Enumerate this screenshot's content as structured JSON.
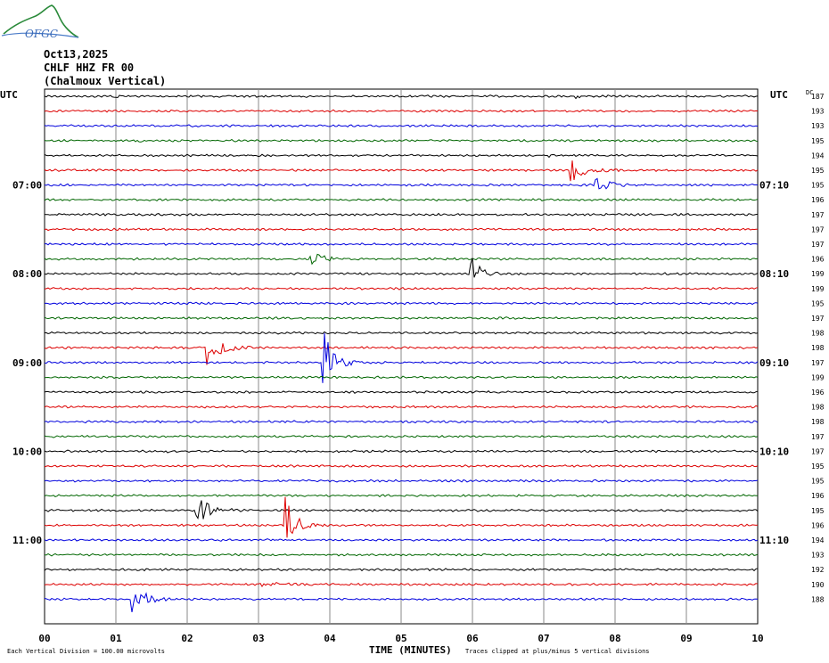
{
  "header": {
    "logo_text": "OFGC",
    "date": "Oct13,2025",
    "station": "CHLF HHZ FR 00",
    "location": "(Chalmoux Vertical)"
  },
  "chart_data": {
    "type": "line",
    "title": "",
    "xlabel": "TIME (MINUTES)",
    "xlim": [
      0,
      10
    ],
    "x_ticks": [
      "00",
      "01",
      "02",
      "03",
      "04",
      "05",
      "06",
      "07",
      "08",
      "09",
      "10"
    ],
    "left_axis_title": "UTC",
    "right_axis_title": "UTC",
    "dc_label": "DC",
    "left_time_labels": [
      {
        "row": 6,
        "label": "07:00"
      },
      {
        "row": 12,
        "label": "08:00"
      },
      {
        "row": 18,
        "label": "09:00"
      },
      {
        "row": 24,
        "label": "10:00"
      },
      {
        "row": 30,
        "label": "11:00"
      }
    ],
    "right_time_labels": [
      {
        "row": 6,
        "label": "07:10"
      },
      {
        "row": 12,
        "label": "08:10"
      },
      {
        "row": 18,
        "label": "09:10"
      },
      {
        "row": 24,
        "label": "10:10"
      },
      {
        "row": 30,
        "label": "11:10"
      }
    ],
    "dc_offsets": [
      187,
      193,
      193,
      195,
      194,
      195,
      195,
      196,
      197,
      197,
      197,
      196,
      199,
      199,
      195,
      197,
      198,
      198,
      197,
      199,
      196,
      198,
      198,
      197,
      197,
      195,
      195,
      196,
      195,
      196,
      194,
      193,
      192,
      190,
      188
    ],
    "trace_colors": [
      "#000000",
      "#dd0000",
      "#0000dd",
      "#006600"
    ],
    "grid": true,
    "events": [
      {
        "row": 0,
        "minute": 0.95,
        "amplitude": 0.5,
        "duration": 0.25
      },
      {
        "row": 0,
        "minute": 7.4,
        "amplitude": 0.5,
        "duration": 0.25
      },
      {
        "row": 3,
        "minute": 1.3,
        "amplitude": 0.3,
        "duration": 0.2
      },
      {
        "row": 4,
        "minute": 7.05,
        "amplitude": 0.35,
        "duration": 0.15
      },
      {
        "row": 5,
        "minute": 7.35,
        "amplitude": 1.5,
        "duration": 0.8
      },
      {
        "row": 6,
        "minute": 7.7,
        "amplitude": 0.9,
        "duration": 0.8
      },
      {
        "row": 11,
        "minute": 3.7,
        "amplitude": 1.0,
        "duration": 0.8
      },
      {
        "row": 12,
        "minute": 5.95,
        "amplitude": 2.4,
        "duration": 0.5
      },
      {
        "row": 17,
        "minute": 2.25,
        "amplitude": 1.6,
        "duration": 0.9
      },
      {
        "row": 18,
        "minute": 3.88,
        "amplitude": 3.0,
        "duration": 0.7
      },
      {
        "row": 24,
        "minute": 1.7,
        "amplitude": 0.15,
        "duration": 0.3
      },
      {
        "row": 28,
        "minute": 2.1,
        "amplitude": 1.3,
        "duration": 0.9
      },
      {
        "row": 29,
        "minute": 3.35,
        "amplitude": 3.0,
        "duration": 0.6
      },
      {
        "row": 34,
        "minute": 1.2,
        "amplitude": 1.5,
        "duration": 0.8
      },
      {
        "row": 33,
        "minute": 3.0,
        "amplitude": 0.2,
        "duration": 1.2
      }
    ]
  },
  "footer": {
    "vertical_division": "Each Vertical Division =  100.00 microvolts",
    "clip_note": "Traces clipped at plus/minus 5 vertical divisions"
  }
}
